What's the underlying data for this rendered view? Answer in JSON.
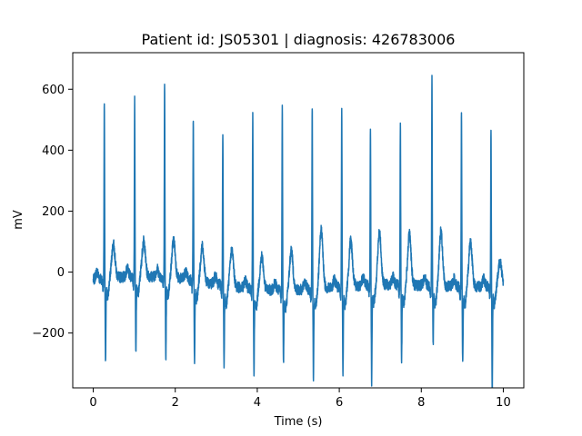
{
  "chart_data": {
    "type": "line",
    "title": "Patient id: JS05301 | diagnosis: 426783006",
    "xlabel": "Time (s)",
    "ylabel": "mV",
    "xlim": [
      -0.5,
      10.5
    ],
    "ylim": [
      -380,
      720
    ],
    "xticks": [
      0,
      2,
      4,
      6,
      8,
      10
    ],
    "xtick_labels": [
      "0",
      "2",
      "4",
      "6",
      "8",
      "10"
    ],
    "yticks": [
      -200,
      0,
      200,
      400,
      600
    ],
    "ytick_labels": [
      "−200",
      "0",
      "200",
      "400",
      "600"
    ],
    "grid": false,
    "line_color": "#1f77b4",
    "series": [
      {
        "x_start": 0.0,
        "x_end": 10.0,
        "beats": [
          {
            "t": 0.27,
            "r": 585,
            "s": -270,
            "t_wave": 110
          },
          {
            "t": 1.01,
            "r": 590,
            "s": -225,
            "t_wave": 115
          },
          {
            "t": 1.74,
            "r": 640,
            "s": -270,
            "t_wave": 125
          },
          {
            "t": 2.44,
            "r": 540,
            "s": -260,
            "t_wave": 115
          },
          {
            "t": 3.16,
            "r": 510,
            "s": -260,
            "t_wave": 120
          },
          {
            "t": 3.89,
            "r": 570,
            "s": -260,
            "t_wave": 110
          },
          {
            "t": 4.61,
            "r": 620,
            "s": -215,
            "t_wave": 130
          },
          {
            "t": 5.34,
            "r": 605,
            "s": -280,
            "t_wave": 190
          },
          {
            "t": 6.06,
            "r": 590,
            "s": -270,
            "t_wave": 150
          },
          {
            "t": 6.76,
            "r": 520,
            "s": -300,
            "t_wave": 170
          },
          {
            "t": 7.49,
            "r": 540,
            "s": -235,
            "t_wave": 165
          },
          {
            "t": 8.26,
            "r": 680,
            "s": -175,
            "t_wave": 180
          },
          {
            "t": 8.98,
            "r": 580,
            "s": -245,
            "t_wave": 150
          },
          {
            "t": 9.7,
            "r": 515,
            "s": -330,
            "t_wave": 80
          }
        ]
      }
    ]
  }
}
